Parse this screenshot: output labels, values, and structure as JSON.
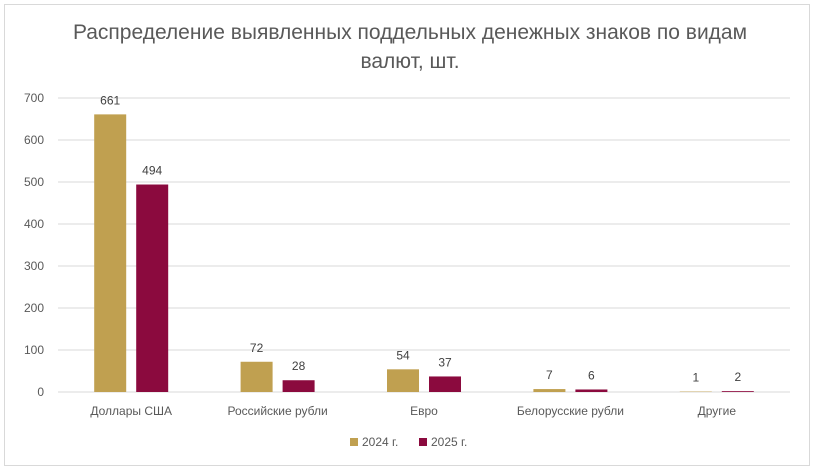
{
  "chart_data": {
    "type": "bar",
    "title": "Распределение выявленных поддельных денежных знаков по видам валют, шт.",
    "categories": [
      "Доллары США",
      "Российские рубли",
      "Евро",
      "Белорусские рубли",
      "Другие"
    ],
    "series": [
      {
        "name": "2024 г.",
        "values": [
          661,
          72,
          54,
          7,
          1
        ],
        "color": "#c0a050"
      },
      {
        "name": "2025 г.",
        "values": [
          494,
          28,
          37,
          6,
          2
        ],
        "color": "#8b0a3e"
      }
    ],
    "ylim": [
      0,
      700
    ],
    "yticks": [
      0,
      100,
      200,
      300,
      400,
      500,
      600,
      700
    ],
    "xlabel": "",
    "ylabel": "",
    "grid": true,
    "legend_position": "bottom",
    "data_labels": true
  }
}
